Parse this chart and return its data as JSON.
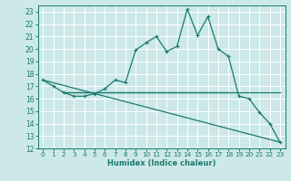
{
  "xlabel": "Humidex (Indice chaleur)",
  "bg_color": "#cce8e8",
  "grid_color": "#ffffff",
  "line_color": "#1a7a6e",
  "xlim": [
    -0.5,
    23.5
  ],
  "ylim": [
    12,
    23.5
  ],
  "xticks": [
    0,
    1,
    2,
    3,
    4,
    5,
    6,
    7,
    8,
    9,
    10,
    11,
    12,
    13,
    14,
    15,
    16,
    17,
    18,
    19,
    20,
    21,
    22,
    23
  ],
  "yticks": [
    12,
    13,
    14,
    15,
    16,
    17,
    18,
    19,
    20,
    21,
    22,
    23
  ],
  "line1_x": [
    0,
    1,
    2,
    3,
    4,
    5,
    6,
    7,
    8,
    9,
    10,
    11,
    12,
    13,
    14,
    15,
    16,
    17,
    18,
    19,
    20,
    21,
    22,
    23
  ],
  "line1_y": [
    17.5,
    17.0,
    16.5,
    16.2,
    16.2,
    16.4,
    16.8,
    17.5,
    17.3,
    19.9,
    20.5,
    21.0,
    19.8,
    20.2,
    23.2,
    21.1,
    22.6,
    20.0,
    19.4,
    16.2,
    16.0,
    14.9,
    14.0,
    12.5
  ],
  "line2_x": [
    2,
    23
  ],
  "line2_y": [
    16.5,
    16.5
  ],
  "line3_x": [
    2,
    18
  ],
  "line3_y": [
    16.5,
    16.5
  ],
  "line4_x": [
    0,
    23
  ],
  "line4_y": [
    17.5,
    12.5
  ]
}
